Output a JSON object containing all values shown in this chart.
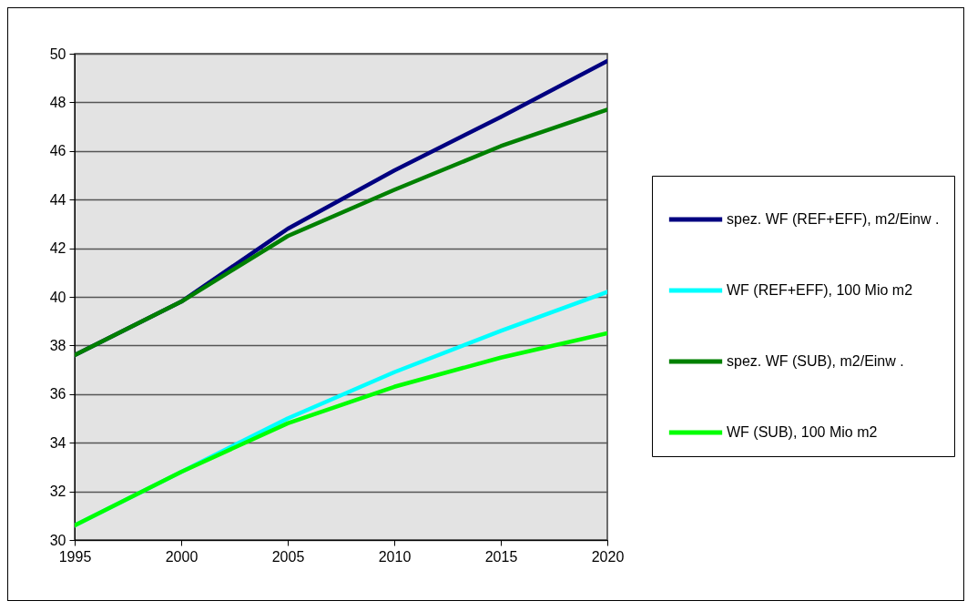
{
  "chart_data": {
    "type": "line",
    "x": [
      1995,
      2000,
      2005,
      2010,
      2015,
      2020
    ],
    "series": [
      {
        "name": "spez. WF (REF+EFF), m2/Einw .",
        "color": "#000080",
        "values": [
          37.6,
          39.8,
          42.8,
          45.2,
          47.4,
          49.7
        ]
      },
      {
        "name": "WF (REF+EFF), 100 Mio m2",
        "color": "#00ffff",
        "values": [
          30.6,
          32.8,
          35.0,
          36.9,
          38.6,
          40.2
        ]
      },
      {
        "name": "spez. WF (SUB), m2/Einw .",
        "color": "#008000",
        "values": [
          37.6,
          39.8,
          42.5,
          44.4,
          46.2,
          47.7
        ]
      },
      {
        "name": "WF (SUB), 100 Mio m2",
        "color": "#00ff00",
        "values": [
          30.6,
          32.8,
          34.8,
          36.3,
          37.5,
          38.5
        ]
      }
    ],
    "xlim": [
      1995,
      2020
    ],
    "ylim": [
      30,
      50
    ],
    "xticks": [
      1995,
      2000,
      2005,
      2010,
      2015,
      2020
    ],
    "yticks": [
      30,
      32,
      34,
      36,
      38,
      40,
      42,
      44,
      46,
      48,
      50
    ],
    "grid": "y",
    "legend": "right"
  }
}
